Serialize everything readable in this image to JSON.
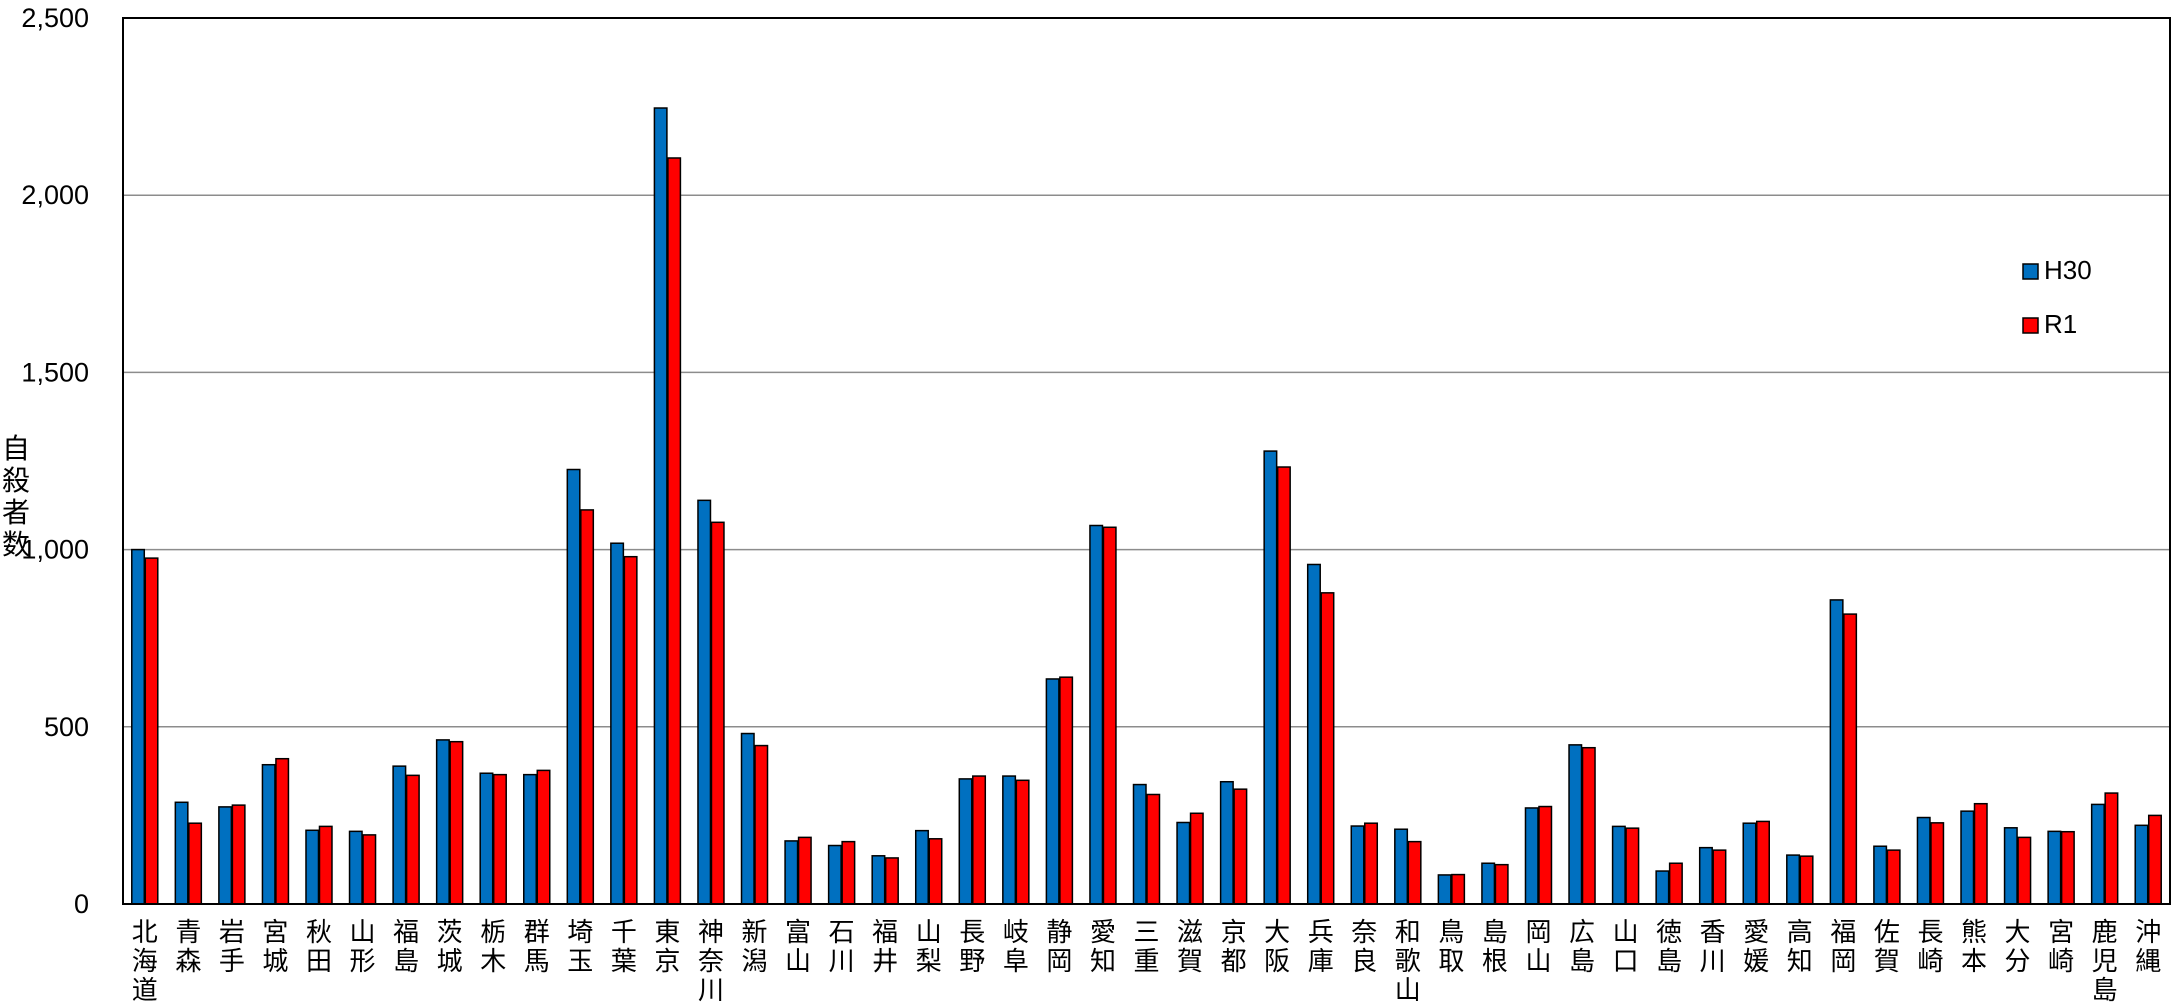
{
  "chart_data": {
    "type": "bar",
    "ylabel": "自殺者数",
    "ylim": [
      0,
      2500
    ],
    "yticks": [
      0,
      500,
      1000,
      1500,
      2000,
      2500
    ],
    "ytick_labels": [
      "0",
      "500",
      "1,000",
      "1,500",
      "2,000",
      "2,500"
    ],
    "grid": true,
    "legend_position": "right",
    "categories": [
      "北海道",
      "青森",
      "岩手",
      "宮城",
      "秋田",
      "山形",
      "福島",
      "茨城",
      "栃木",
      "群馬",
      "埼玉",
      "千葉",
      "東京",
      "神奈川",
      "新潟",
      "富山",
      "石川",
      "福井",
      "山梨",
      "長野",
      "岐阜",
      "静岡",
      "愛知",
      "三重",
      "滋賀",
      "京都",
      "大阪",
      "兵庫",
      "奈良",
      "和歌山",
      "鳥取",
      "島根",
      "岡山",
      "広島",
      "山口",
      "徳島",
      "香川",
      "愛媛",
      "高知",
      "福岡",
      "佐賀",
      "長崎",
      "熊本",
      "大分",
      "宮崎",
      "鹿児島",
      "沖縄"
    ],
    "series": [
      {
        "name": "H30",
        "color": "#0070C0",
        "values": [
          1000,
          287,
          274,
          393,
          208,
          205,
          389,
          463,
          369,
          365,
          1226,
          1018,
          2246,
          1139,
          481,
          178,
          165,
          136,
          207,
          353,
          361,
          635,
          1068,
          337,
          230,
          345,
          1278,
          958,
          220,
          211,
          82,
          115,
          271,
          449,
          219,
          93,
          159,
          228,
          138,
          858,
          163,
          244,
          262,
          215,
          205,
          281,
          222
        ]
      },
      {
        "name": "R1",
        "color": "#FF0000",
        "values": [
          976,
          228,
          279,
          410,
          219,
          195,
          363,
          458,
          365,
          377,
          1112,
          980,
          2105,
          1077,
          447,
          188,
          176,
          130,
          184,
          361,
          349,
          640,
          1063,
          309,
          256,
          324,
          1233,
          878,
          228,
          176,
          83,
          111,
          275,
          441,
          214,
          115,
          152,
          233,
          135,
          818,
          152,
          229,
          283,
          188,
          204,
          313,
          250
        ]
      }
    ]
  }
}
